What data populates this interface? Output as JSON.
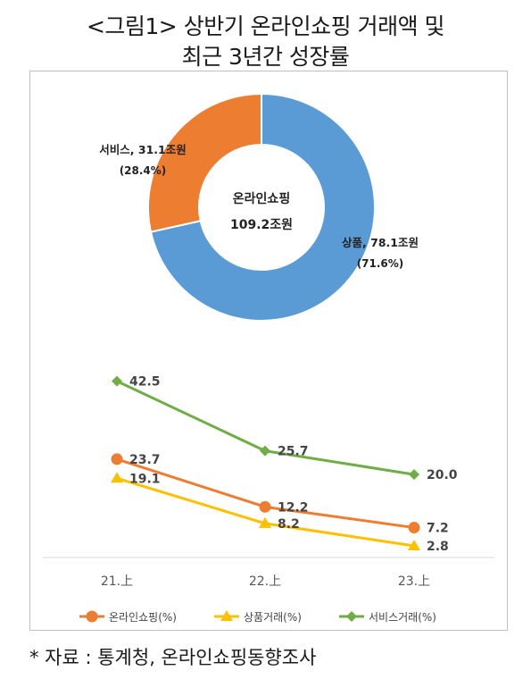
{
  "title_line1": "<그림1> 상반기 온라인쇼핑 거래액 및",
  "title_line2": "최근 3년간 성장률",
  "source": "* 자료 : 통계청, 온라인쇼핑동향조사",
  "chart_data": [
    {
      "type": "pie",
      "style": "donut",
      "center_label": "온라인쇼핑",
      "center_value": "109.2조원",
      "slices": [
        {
          "name": "상품",
          "value": 78.1,
          "unit": "조원",
          "percent": 71.6,
          "label": "상품, 78.1조원",
          "pct_label": "(71.6%)",
          "color": "#5b9bd5"
        },
        {
          "name": "서비스",
          "value": 31.1,
          "unit": "조원",
          "percent": 28.4,
          "label": "서비스, 31.1조원",
          "pct_label": "(28.4%)",
          "color": "#ed7d31"
        }
      ]
    },
    {
      "type": "line",
      "categories": [
        "21.上",
        "22.上",
        "23.上"
      ],
      "ylim": [
        0,
        45
      ],
      "legend_position": "bottom",
      "series": [
        {
          "name": "온라인쇼핑(%)",
          "values": [
            23.7,
            12.2,
            7.2
          ],
          "labels": [
            "23.7",
            "12.2",
            "7.2"
          ],
          "color": "#ed7d31",
          "marker": "circle"
        },
        {
          "name": "상품거래(%)",
          "values": [
            19.1,
            8.2,
            2.8
          ],
          "labels": [
            "19.1",
            "8.2",
            "2.8"
          ],
          "color": "#ffc000",
          "marker": "triangle"
        },
        {
          "name": "서비스거래(%)",
          "values": [
            42.5,
            25.7,
            20.0
          ],
          "labels": [
            "42.5",
            "25.7",
            "20.0"
          ],
          "color": "#70ad47",
          "marker": "diamond"
        }
      ]
    }
  ]
}
